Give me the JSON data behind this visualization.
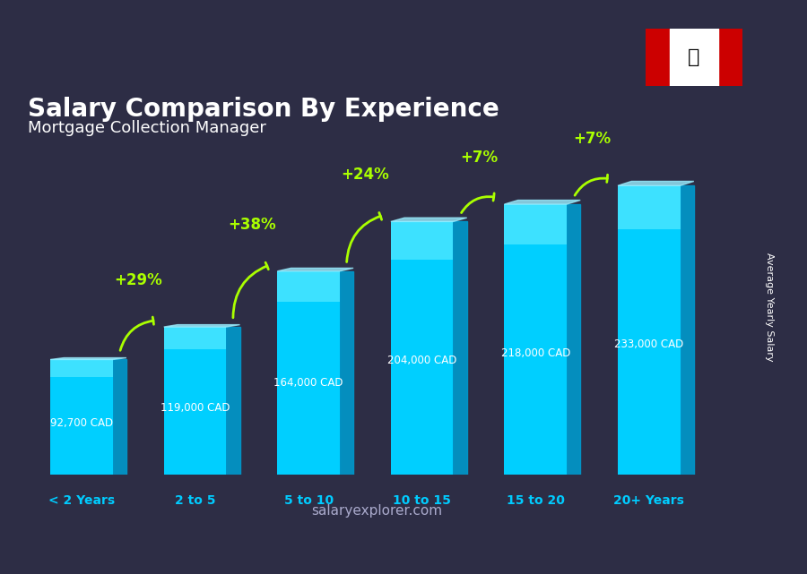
{
  "title": "Salary Comparison By Experience",
  "subtitle": "Mortgage Collection Manager",
  "categories": [
    "< 2 Years",
    "2 to 5",
    "5 to 10",
    "10 to 15",
    "15 to 20",
    "20+ Years"
  ],
  "values": [
    92700,
    119000,
    164000,
    204000,
    218000,
    233000
  ],
  "labels": [
    "92,700 CAD",
    "119,000 CAD",
    "164,000 CAD",
    "204,000 CAD",
    "218,000 CAD",
    "233,000 CAD"
  ],
  "pct_changes": [
    "+29%",
    "+38%",
    "+24%",
    "+7%",
    "+7%"
  ],
  "bar_color_top": "#00d4ff",
  "bar_color_mid": "#00aadd",
  "bar_color_bottom": "#0077bb",
  "bg_color": "#1a1a2e",
  "title_color": "#ffffff",
  "subtitle_color": "#ffffff",
  "label_color": "#ffffff",
  "pct_color": "#aaff00",
  "xlabel_color": "#00ccff",
  "ylabel_text": "Average Yearly Salary",
  "footer_text": "salaryexplorer.com",
  "ylim": [
    0,
    270000
  ],
  "figsize": [
    9.0,
    6.41
  ],
  "dpi": 100
}
